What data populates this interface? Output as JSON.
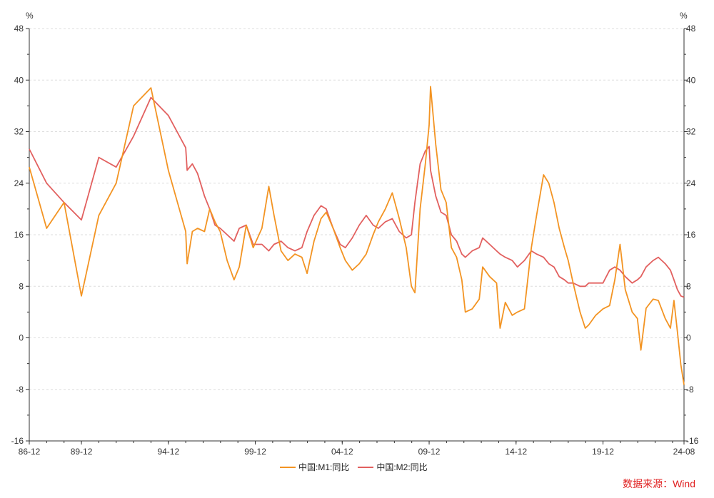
{
  "chart_data": {
    "type": "line",
    "title": "",
    "ylabel_left": "%",
    "ylabel_right": "%",
    "ylim": [
      -16,
      48
    ],
    "yticks": [
      -16,
      -8,
      0,
      8,
      16,
      24,
      32,
      40,
      48
    ],
    "xlim": [
      1986.92,
      2024.58
    ],
    "xticks": [
      {
        "label": "86-12",
        "t": 1986.92
      },
      {
        "label": "89-12",
        "t": 1989.92
      },
      {
        "label": "94-12",
        "t": 1994.92
      },
      {
        "label": "99-12",
        "t": 1999.92
      },
      {
        "label": "04-12",
        "t": 2004.92
      },
      {
        "label": "09-12",
        "t": 2009.92
      },
      {
        "label": "14-12",
        "t": 2014.92
      },
      {
        "label": "19-12",
        "t": 2019.92
      },
      {
        "label": "24-08",
        "t": 2024.58
      }
    ],
    "series": [
      {
        "name": "中国:M1:同比",
        "color": "#f39423",
        "points": [
          [
            1986.92,
            26.5
          ],
          [
            1987.92,
            17.0
          ],
          [
            1988.92,
            21.0
          ],
          [
            1989.92,
            6.5
          ],
          [
            1990.92,
            19.0
          ],
          [
            1991.92,
            24.0
          ],
          [
            1992.92,
            36.0
          ],
          [
            1993.92,
            38.8
          ],
          [
            1994.92,
            26.0
          ],
          [
            1995.92,
            16.5
          ],
          [
            1996.0,
            11.5
          ],
          [
            1996.3,
            16.5
          ],
          [
            1996.6,
            17.0
          ],
          [
            1997.0,
            16.5
          ],
          [
            1997.3,
            20.0
          ],
          [
            1997.6,
            18.0
          ],
          [
            1997.9,
            16.5
          ],
          [
            1998.3,
            12.0
          ],
          [
            1998.7,
            9.0
          ],
          [
            1999.0,
            11.0
          ],
          [
            1999.4,
            17.5
          ],
          [
            1999.8,
            14.0
          ],
          [
            2000.3,
            17.0
          ],
          [
            2000.7,
            23.5
          ],
          [
            2001.0,
            19.0
          ],
          [
            2001.4,
            13.5
          ],
          [
            2001.8,
            12.0
          ],
          [
            2002.2,
            13.0
          ],
          [
            2002.6,
            12.5
          ],
          [
            2002.9,
            10.0
          ],
          [
            2003.3,
            15.0
          ],
          [
            2003.7,
            18.5
          ],
          [
            2004.0,
            19.5
          ],
          [
            2004.4,
            17.0
          ],
          [
            2004.8,
            14.0
          ],
          [
            2005.1,
            12.0
          ],
          [
            2005.5,
            10.5
          ],
          [
            2005.9,
            11.5
          ],
          [
            2006.3,
            13.0
          ],
          [
            2006.7,
            16.0
          ],
          [
            2007.0,
            18.0
          ],
          [
            2007.4,
            20.0
          ],
          [
            2007.8,
            22.5
          ],
          [
            2008.2,
            18.5
          ],
          [
            2008.6,
            14.0
          ],
          [
            2008.9,
            8.0
          ],
          [
            2009.1,
            7.0
          ],
          [
            2009.4,
            20.0
          ],
          [
            2009.7,
            27.0
          ],
          [
            2009.92,
            33.0
          ],
          [
            2010.0,
            39.0
          ],
          [
            2010.3,
            30.0
          ],
          [
            2010.6,
            23.0
          ],
          [
            2010.9,
            21.0
          ],
          [
            2011.2,
            14.0
          ],
          [
            2011.5,
            12.5
          ],
          [
            2011.8,
            9.0
          ],
          [
            2012.0,
            4.0
          ],
          [
            2012.4,
            4.5
          ],
          [
            2012.8,
            6.0
          ],
          [
            2013.0,
            11.0
          ],
          [
            2013.4,
            9.5
          ],
          [
            2013.8,
            8.5
          ],
          [
            2014.0,
            1.5
          ],
          [
            2014.3,
            5.5
          ],
          [
            2014.7,
            3.5
          ],
          [
            2015.0,
            4.0
          ],
          [
            2015.4,
            4.5
          ],
          [
            2015.8,
            14.0
          ],
          [
            2016.1,
            19.0
          ],
          [
            2016.5,
            25.3
          ],
          [
            2016.8,
            24.0
          ],
          [
            2017.1,
            21.0
          ],
          [
            2017.4,
            17.0
          ],
          [
            2017.7,
            14.0
          ],
          [
            2017.92,
            12.0
          ],
          [
            2018.2,
            8.5
          ],
          [
            2018.6,
            4.0
          ],
          [
            2018.9,
            1.5
          ],
          [
            2019.1,
            2.0
          ],
          [
            2019.5,
            3.5
          ],
          [
            2019.92,
            4.5
          ],
          [
            2020.3,
            5.0
          ],
          [
            2020.6,
            9.0
          ],
          [
            2020.9,
            14.5
          ],
          [
            2021.2,
            7.5
          ],
          [
            2021.6,
            4.0
          ],
          [
            2021.9,
            3.0
          ],
          [
            2022.1,
            -1.9
          ],
          [
            2022.4,
            4.6
          ],
          [
            2022.8,
            6.0
          ],
          [
            2023.1,
            5.8
          ],
          [
            2023.5,
            3.0
          ],
          [
            2023.8,
            1.5
          ],
          [
            2024.0,
            5.8
          ],
          [
            2024.2,
            1.0
          ],
          [
            2024.4,
            -4.2
          ],
          [
            2024.58,
            -7.3
          ]
        ]
      },
      {
        "name": "中国:M2:同比",
        "color": "#e2605f",
        "points": [
          [
            1986.92,
            29.3
          ],
          [
            1987.92,
            24.0
          ],
          [
            1988.92,
            21.0
          ],
          [
            1989.92,
            18.3
          ],
          [
            1990.92,
            28.0
          ],
          [
            1991.92,
            26.5
          ],
          [
            1992.92,
            31.3
          ],
          [
            1993.92,
            37.3
          ],
          [
            1994.92,
            34.5
          ],
          [
            1995.92,
            29.5
          ],
          [
            1996.0,
            26.0
          ],
          [
            1996.3,
            27.0
          ],
          [
            1996.6,
            25.5
          ],
          [
            1997.0,
            22.0
          ],
          [
            1997.3,
            20.0
          ],
          [
            1997.6,
            17.5
          ],
          [
            1997.9,
            17.0
          ],
          [
            1998.3,
            16.0
          ],
          [
            1998.7,
            15.0
          ],
          [
            1999.0,
            17.0
          ],
          [
            1999.4,
            17.5
          ],
          [
            1999.8,
            14.5
          ],
          [
            2000.3,
            14.5
          ],
          [
            2000.7,
            13.5
          ],
          [
            2001.0,
            14.5
          ],
          [
            2001.4,
            15.0
          ],
          [
            2001.8,
            14.0
          ],
          [
            2002.2,
            13.5
          ],
          [
            2002.6,
            14.0
          ],
          [
            2002.9,
            16.5
          ],
          [
            2003.3,
            19.0
          ],
          [
            2003.7,
            20.5
          ],
          [
            2004.0,
            20.0
          ],
          [
            2004.4,
            17.0
          ],
          [
            2004.8,
            14.5
          ],
          [
            2005.1,
            14.0
          ],
          [
            2005.5,
            15.5
          ],
          [
            2005.9,
            17.5
          ],
          [
            2006.3,
            19.0
          ],
          [
            2006.7,
            17.5
          ],
          [
            2007.0,
            17.0
          ],
          [
            2007.4,
            18.0
          ],
          [
            2007.8,
            18.5
          ],
          [
            2008.2,
            16.5
          ],
          [
            2008.6,
            15.5
          ],
          [
            2008.9,
            16.0
          ],
          [
            2009.1,
            21.0
          ],
          [
            2009.4,
            27.0
          ],
          [
            2009.7,
            29.0
          ],
          [
            2009.92,
            29.7
          ],
          [
            2010.0,
            26.0
          ],
          [
            2010.3,
            22.0
          ],
          [
            2010.6,
            19.5
          ],
          [
            2010.9,
            19.0
          ],
          [
            2011.2,
            16.0
          ],
          [
            2011.5,
            15.0
          ],
          [
            2011.8,
            13.0
          ],
          [
            2012.0,
            12.5
          ],
          [
            2012.4,
            13.5
          ],
          [
            2012.8,
            14.0
          ],
          [
            2013.0,
            15.5
          ],
          [
            2013.4,
            14.5
          ],
          [
            2013.8,
            13.5
          ],
          [
            2014.0,
            13.0
          ],
          [
            2014.3,
            12.5
          ],
          [
            2014.7,
            12.0
          ],
          [
            2015.0,
            11.0
          ],
          [
            2015.4,
            12.0
          ],
          [
            2015.8,
            13.5
          ],
          [
            2016.1,
            13.0
          ],
          [
            2016.5,
            12.5
          ],
          [
            2016.8,
            11.5
          ],
          [
            2017.1,
            11.0
          ],
          [
            2017.4,
            9.5
          ],
          [
            2017.7,
            9.0
          ],
          [
            2017.92,
            8.5
          ],
          [
            2018.2,
            8.5
          ],
          [
            2018.6,
            8.0
          ],
          [
            2018.9,
            8.0
          ],
          [
            2019.1,
            8.5
          ],
          [
            2019.5,
            8.5
          ],
          [
            2019.92,
            8.5
          ],
          [
            2020.3,
            10.5
          ],
          [
            2020.6,
            11.0
          ],
          [
            2020.9,
            10.5
          ],
          [
            2021.2,
            9.5
          ],
          [
            2021.6,
            8.5
          ],
          [
            2021.9,
            9.0
          ],
          [
            2022.1,
            9.5
          ],
          [
            2022.4,
            11.0
          ],
          [
            2022.8,
            12.0
          ],
          [
            2023.1,
            12.5
          ],
          [
            2023.5,
            11.5
          ],
          [
            2023.8,
            10.5
          ],
          [
            2024.0,
            9.0
          ],
          [
            2024.2,
            7.5
          ],
          [
            2024.4,
            6.5
          ],
          [
            2024.58,
            6.3
          ]
        ]
      }
    ]
  },
  "legend": {
    "items": [
      {
        "label": "中国:M1:同比",
        "color": "#f39423"
      },
      {
        "label": "中国:M2:同比",
        "color": "#e2605f"
      }
    ]
  },
  "source": {
    "text": "数据来源：Wind"
  }
}
